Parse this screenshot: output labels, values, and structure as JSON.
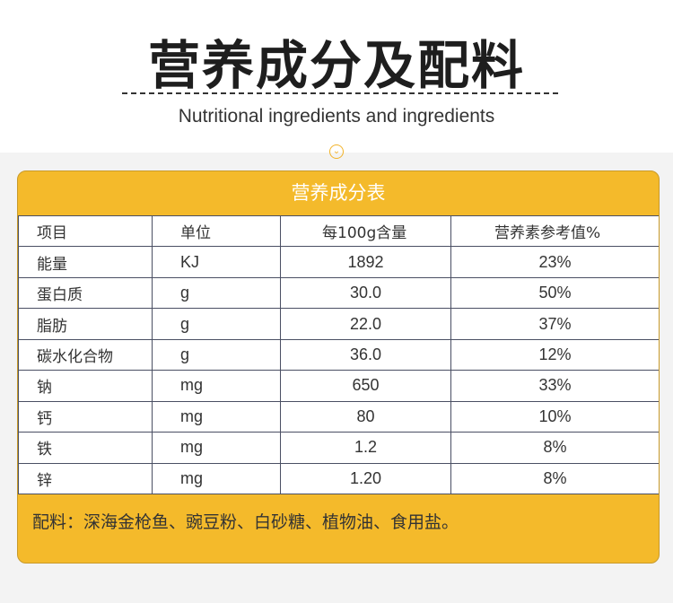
{
  "title": "营养成分及配料",
  "subtitle": "Nutritional ingredients and ingredients",
  "table_title": "营养成分表",
  "headers": [
    "项目",
    "单位",
    "每100g含量",
    "营养素参考值%"
  ],
  "rows": [
    [
      "能量",
      "KJ",
      "1892",
      "23%"
    ],
    [
      "蛋白质",
      "g",
      "30.0",
      "50%"
    ],
    [
      "脂肪",
      "g",
      "22.0",
      "37%"
    ],
    [
      "碳水化合物",
      "g",
      "36.0",
      "12%"
    ],
    [
      "钠",
      "mg",
      "650",
      "33%"
    ],
    [
      "钙",
      "mg",
      "80",
      "10%"
    ],
    [
      "铁",
      "mg",
      "1.2",
      "8%"
    ],
    [
      "锌",
      "mg",
      "1.20",
      "8%"
    ]
  ],
  "ingredients": "配料：深海金枪鱼、豌豆粉、白砂糖、植物油、食用盐。",
  "colors": {
    "accent": "#f4ba2b",
    "border": "#4a4f63"
  },
  "icons": {
    "chevron": "chevron-down-circle-icon"
  }
}
